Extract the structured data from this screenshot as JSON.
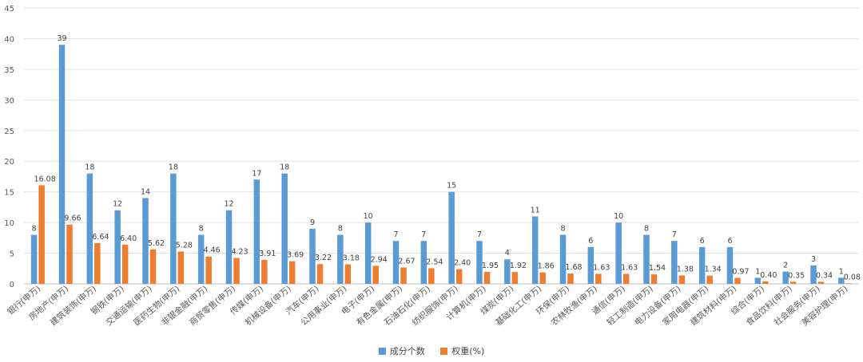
{
  "chart_data": {
    "type": "bar",
    "ylim": [
      0,
      45
    ],
    "yticks": [
      0,
      5,
      10,
      15,
      20,
      25,
      30,
      35,
      40,
      45
    ],
    "grid": true,
    "legend_position": "bottom",
    "categories": [
      "银行(申万)",
      "房地产(申万)",
      "建筑装饰(申万)",
      "钢铁(申万)",
      "交通运输(申万)",
      "医药生物(申万)",
      "非银金融(申万)",
      "商贸零售(申万)",
      "传媒(申万)",
      "机械设备(申万)",
      "汽车(申万)",
      "公用事业(申万)",
      "电子(申万)",
      "有色金属(申万)",
      "石油石化(申万)",
      "纺织服饰(申万)",
      "计算机(申万)",
      "煤炭(申万)",
      "基础化工(申万)",
      "环保(申万)",
      "农林牧渔(申万)",
      "通信(申万)",
      "轻工制造(申万)",
      "电力设备(申万)",
      "家用电器(申万)",
      "建筑材料(申万)",
      "综合(申万)",
      "食品饮料(申万)",
      "社会服务(申万)",
      "美容护理(申万)"
    ],
    "series": [
      {
        "name": "成分个数",
        "color": "#5b9bd5",
        "values": [
          8,
          39,
          18,
          12,
          14,
          18,
          8,
          12,
          17,
          18,
          9,
          8,
          10,
          7,
          7,
          15,
          7,
          4,
          11,
          8,
          6,
          10,
          8,
          7,
          6,
          6,
          1,
          2,
          3,
          1
        ],
        "labels": [
          "8",
          "39",
          "18",
          "12",
          "14",
          "18",
          "8",
          "12",
          "17",
          "18",
          "9",
          "8",
          "10",
          "7",
          "7",
          "15",
          "7",
          "4",
          "11",
          "8",
          "6",
          "10",
          "8",
          "7",
          "6",
          "6",
          "1",
          "2",
          "3",
          "1"
        ]
      },
      {
        "name": "权重(%)",
        "color": "#ed7d31",
        "values": [
          16.08,
          9.66,
          6.64,
          6.4,
          5.62,
          5.28,
          4.46,
          4.23,
          3.91,
          3.69,
          3.22,
          3.18,
          2.94,
          2.67,
          2.54,
          2.4,
          1.95,
          1.92,
          1.86,
          1.68,
          1.63,
          1.63,
          1.54,
          1.38,
          1.34,
          0.97,
          0.4,
          0.35,
          0.34,
          0.08
        ],
        "labels": [
          "16.08",
          "9.66",
          "6.64",
          "6.40",
          "5.62",
          "5.28",
          "4.46",
          "4.23",
          "3.91",
          "3.69",
          "3.22",
          "3.18",
          "2.94",
          "2.67",
          "2.54",
          "2.40",
          "1.95",
          "1.92",
          "1.86",
          "1.68",
          "1.63",
          "1.63",
          "1.54",
          "1.38",
          "1.34",
          "0.97",
          "0.40",
          "0.35",
          "0.34",
          "0.08"
        ]
      }
    ]
  }
}
